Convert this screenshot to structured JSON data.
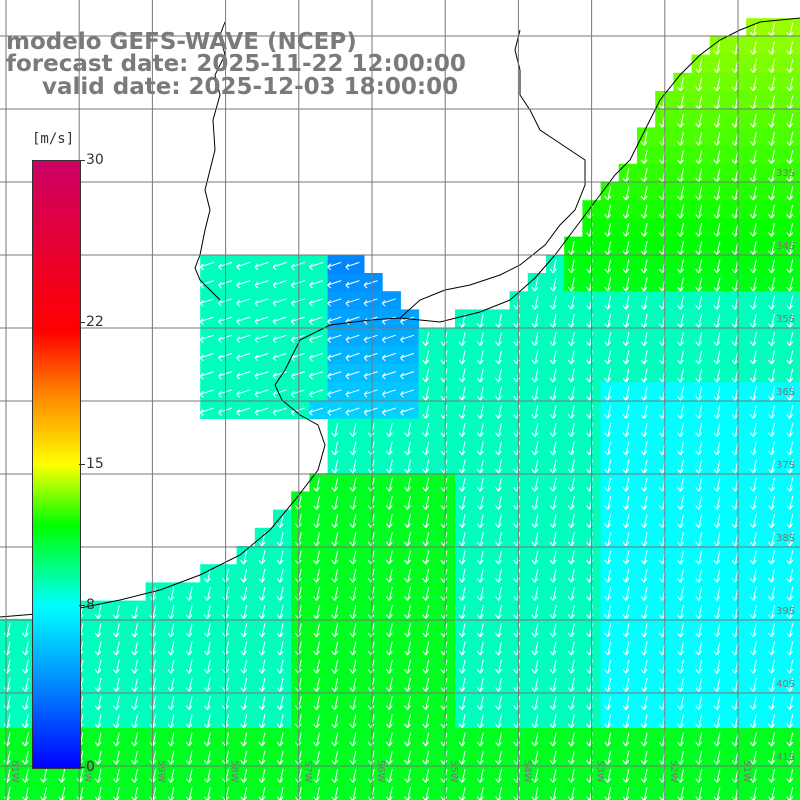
{
  "title": {
    "model": "modelo GEFS-WAVE (NCEP)",
    "forecast": "forecast date: 2025-11-22 12:00:00",
    "valid": "valid date: 2025-12-03 18:00:00"
  },
  "colorbar": {
    "unit": "[m/s]",
    "range": [
      0,
      30
    ],
    "ticks": [
      "30",
      "22",
      "15",
      "8",
      "0"
    ],
    "tick_values": [
      30,
      22,
      15,
      8,
      0
    ],
    "colors": [
      "#0000ff",
      "#0078ff",
      "#00ffff",
      "#00ff00",
      "#ffff00",
      "#ff7f00",
      "#ff0000",
      "#cc0066"
    ]
  },
  "map": {
    "land_color": "#ffffff",
    "coastline_color": "#000000",
    "grid_color": "#777777",
    "lat_labels": [
      "33S",
      "34S",
      "35S",
      "36S",
      "37S",
      "38S",
      "39S",
      "40S",
      "41S"
    ],
    "lon_labels": [
      "61W",
      "60W",
      "59W",
      "58W",
      "57W",
      "56W",
      "55W",
      "54W",
      "53W",
      "52W",
      "51W"
    ],
    "grid_on": true,
    "arrows": "white",
    "field": "wind speed"
  }
}
